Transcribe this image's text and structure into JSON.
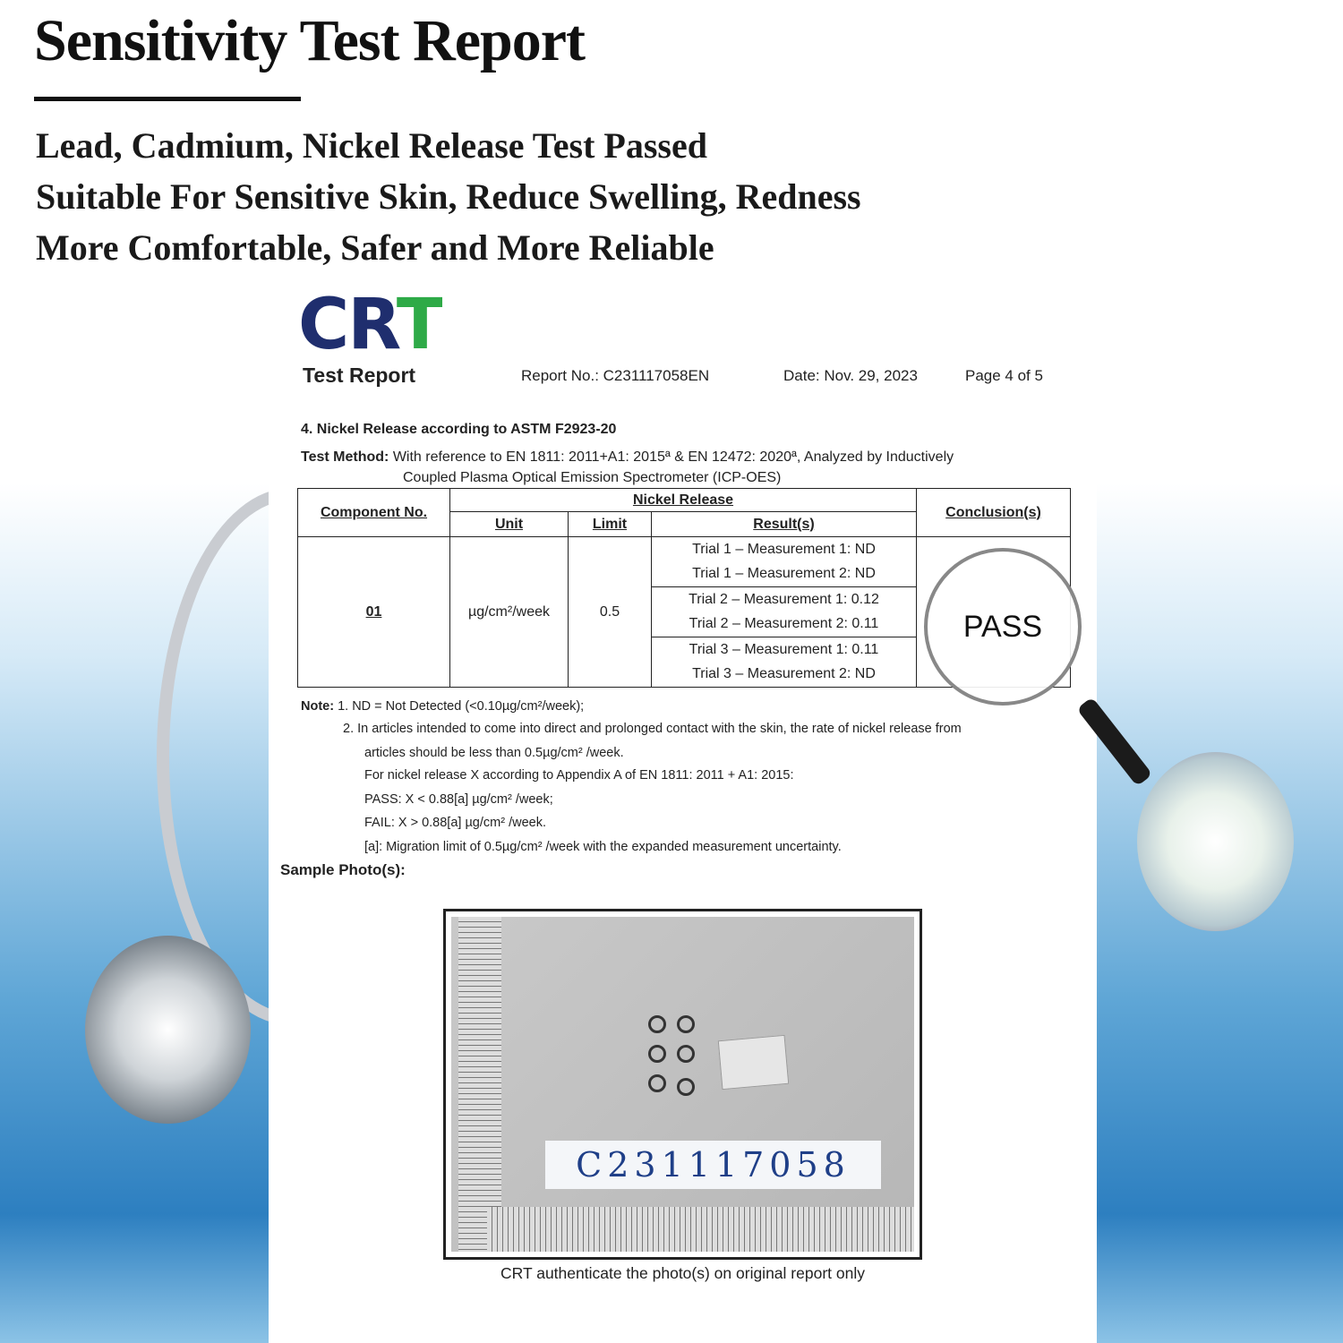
{
  "banner": {
    "title": "Sensitivity Test Report",
    "taglines": [
      "Lead, Cadmium, Nickel Release Test Passed",
      "Suitable For Sensitive Skin, Reduce Swelling, Redness",
      "More Comfortable, Safer and More Reliable"
    ]
  },
  "report": {
    "logo": "CRT",
    "doc_title": "Test Report",
    "report_no": "Report No.: C231117058EN",
    "date": "Date: Nov. 29, 2023",
    "page": "Page 4 of 5",
    "section": "4. Nickel Release according to ASTM F2923-20",
    "method_label": "Test Method:",
    "method_text": "With reference to EN 1811: 2011+A1: 2015ª & EN 12472: 2020ª, Analyzed by Inductively",
    "method_text2": "Coupled Plasma Optical Emission Spectrometer (ICP-OES)",
    "table": {
      "headers": {
        "component": "Component No.",
        "group": "Nickel Release",
        "unit": "Unit",
        "limit": "Limit",
        "results": "Result(s)",
        "conclusion": "Conclusion(s)"
      },
      "component": "01",
      "unit": "µg/cm²/week",
      "limit": "0.5",
      "results": [
        "Trial 1 – Measurement 1: ND",
        "Trial 1 – Measurement 2: ND",
        "Trial 2 – Measurement 1: 0.12",
        "Trial 2 – Measurement 2: 0.11",
        "Trial 3 – Measurement 1: 0.11",
        "Trial 3 – Measurement 2: ND"
      ],
      "conclusion": "PASS"
    },
    "notes": {
      "label": "Note:",
      "n1": "1.  ND = Not Detected (<0.10µg/cm²/week);",
      "n2": "2.  In articles intended to come into direct and prolonged contact with the skin, the rate of nickel release from",
      "n2b": "articles should be less than 0.5µg/cm² /week.",
      "n3": "For nickel release X according to Appendix A of EN 1811: 2011 + A1: 2015:",
      "n4": "PASS: X < 0.88[a] µg/cm² /week;",
      "n5": "FAIL: X > 0.88[a] µg/cm² /week.",
      "n6": "[a]: Migration limit of 0.5µg/cm² /week with the expanded measurement uncertainty."
    },
    "sample_label": "Sample Photo(s):",
    "sample_tag": "C231117058",
    "caption": "CRT authenticate the photo(s) on original report only"
  }
}
